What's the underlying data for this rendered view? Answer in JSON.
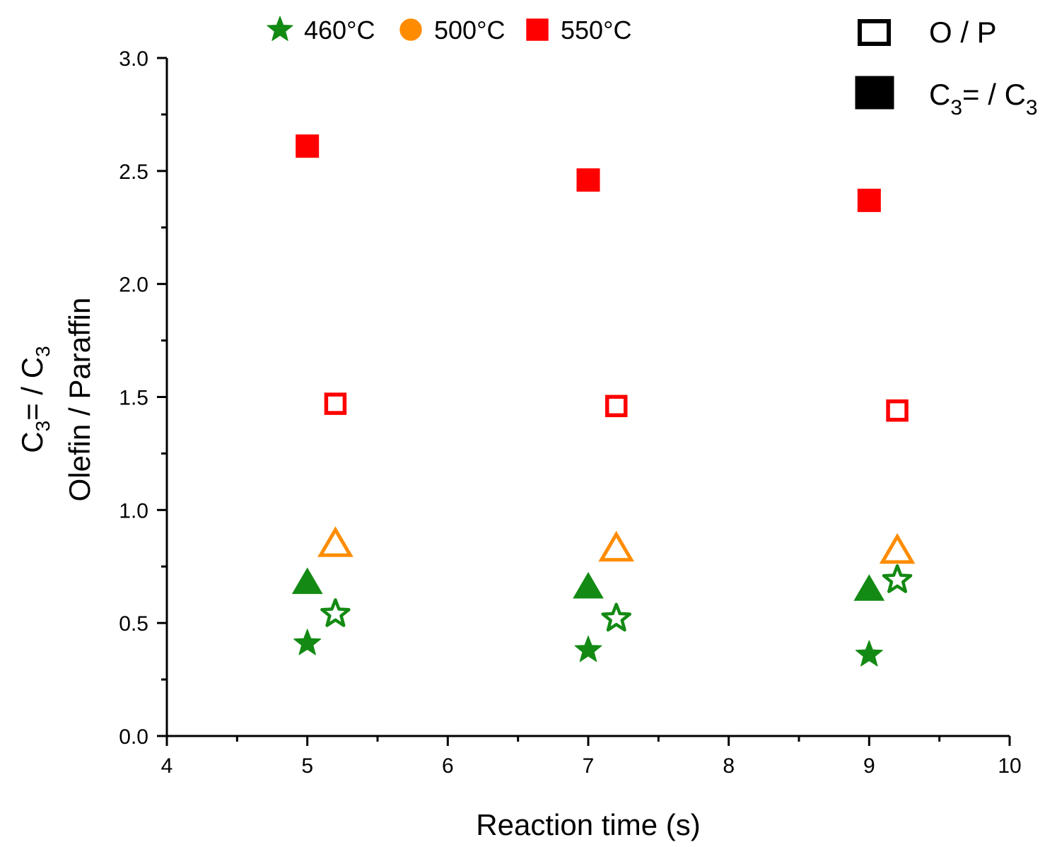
{
  "chart_data": {
    "type": "scatter",
    "title": "",
    "xlabel": "Reaction time (s)",
    "ylabel_line1": "C₃= / C₃",
    "ylabel_line2": "Olefin / Paraffin",
    "xlim": [
      4,
      10
    ],
    "ylim": [
      0.0,
      3.0
    ],
    "x_ticks": [
      "4",
      "5",
      "6",
      "7",
      "8",
      "9",
      "10"
    ],
    "y_ticks": [
      "0.0",
      "0.5",
      "1.0",
      "1.5",
      "2.0",
      "2.5",
      "3.0"
    ],
    "x_tick_values": [
      4,
      5,
      6,
      7,
      8,
      9,
      10
    ],
    "y_tick_values": [
      0.0,
      0.5,
      1.0,
      1.5,
      2.0,
      2.5,
      3.0
    ],
    "grid": false,
    "legend_temperature": [
      {
        "label": "460°C",
        "marker": "star",
        "color": "#138a13"
      },
      {
        "label": "500°C",
        "marker": "circle",
        "color": "#ff8c00"
      },
      {
        "label": "550°C",
        "marker": "square",
        "color": "#ff0000"
      }
    ],
    "legend_fill": [
      {
        "label": "O / P",
        "fill": "open"
      },
      {
        "label": "C₃= / C₃",
        "fill": "filled"
      }
    ],
    "series": [
      {
        "name": "460°C O/P",
        "color": "#138a13",
        "marker": "star",
        "fill": "open",
        "points": [
          {
            "x": 5.2,
            "y": 0.54
          },
          {
            "x": 7.2,
            "y": 0.52
          },
          {
            "x": 9.2,
            "y": 0.69
          }
        ]
      },
      {
        "name": "460°C C3=/C3",
        "color": "#138a13",
        "marker": "star",
        "fill": "filled",
        "points": [
          {
            "x": 5.0,
            "y": 0.41
          },
          {
            "x": 7.0,
            "y": 0.38
          },
          {
            "x": 9.0,
            "y": 0.36
          }
        ]
      },
      {
        "name": "460°C C3=/C3 (triangle)",
        "color": "#138a13",
        "marker": "triangle",
        "fill": "filled",
        "points": [
          {
            "x": 5.0,
            "y": 0.68
          },
          {
            "x": 7.0,
            "y": 0.66
          },
          {
            "x": 9.0,
            "y": 0.65
          }
        ]
      },
      {
        "name": "500°C O/P",
        "color": "#ff8c00",
        "marker": "triangle",
        "fill": "open",
        "points": [
          {
            "x": 5.2,
            "y": 0.85
          },
          {
            "x": 7.2,
            "y": 0.83
          },
          {
            "x": 9.2,
            "y": 0.82
          }
        ]
      },
      {
        "name": "550°C O/P",
        "color": "#ff0000",
        "marker": "square",
        "fill": "open",
        "points": [
          {
            "x": 5.2,
            "y": 1.47
          },
          {
            "x": 7.2,
            "y": 1.46
          },
          {
            "x": 9.2,
            "y": 1.44
          }
        ]
      },
      {
        "name": "550°C C3=/C3",
        "color": "#ff0000",
        "marker": "square",
        "fill": "filled",
        "points": [
          {
            "x": 5.0,
            "y": 2.61
          },
          {
            "x": 7.0,
            "y": 2.46
          },
          {
            "x": 9.0,
            "y": 2.37
          }
        ]
      }
    ]
  }
}
